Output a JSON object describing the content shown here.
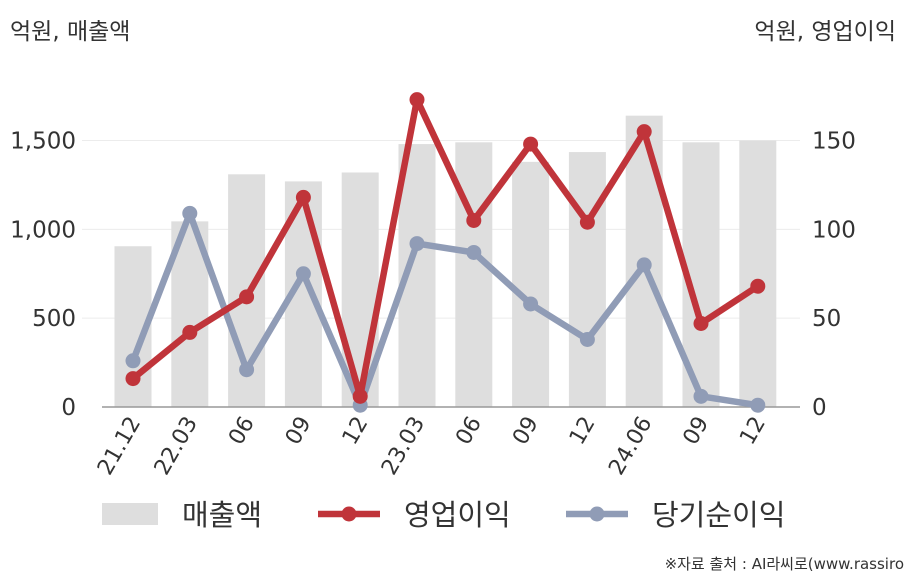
{
  "chart_data": {
    "type": "bar+line",
    "left_axis_unit": "억원, 매출액",
    "right_axis_unit": "억원, 영업이익",
    "categories": [
      "21.12",
      "22.03",
      "06",
      "09",
      "12",
      "23.03",
      "06",
      "09",
      "12",
      "24.06",
      "09",
      "12"
    ],
    "left_axis": {
      "range": [
        0,
        1700
      ],
      "ticks": [
        0,
        500,
        1000,
        1500
      ],
      "tick_labels": [
        "0",
        "500",
        "1,000",
        "1,500"
      ]
    },
    "right_axis": {
      "range": [
        0,
        170
      ],
      "ticks": [
        0,
        50,
        100,
        150
      ],
      "tick_labels": [
        "0",
        "50",
        "100",
        "150"
      ]
    },
    "series": [
      {
        "name": "매출액",
        "kind": "bar",
        "axis": "left",
        "color": "#dedede",
        "values": [
          905,
          1045,
          1310,
          1270,
          1320,
          1480,
          1490,
          1380,
          1435,
          1640,
          1490,
          1500
        ]
      },
      {
        "name": "영업이익",
        "kind": "line",
        "axis": "right",
        "color": "#c0343a",
        "values": [
          16,
          42,
          62,
          118,
          6,
          173,
          105,
          148,
          104,
          155,
          47,
          68
        ]
      },
      {
        "name": "당기순이익",
        "kind": "line",
        "axis": "right",
        "color": "#909cb6",
        "values": [
          26,
          109,
          21,
          75,
          1,
          92,
          87,
          58,
          38,
          80,
          6,
          1
        ]
      }
    ],
    "grid": "horizontal",
    "legend_position": "bottom"
  },
  "source": "※자료 출처 : AI라씨로(www.rassiro"
}
